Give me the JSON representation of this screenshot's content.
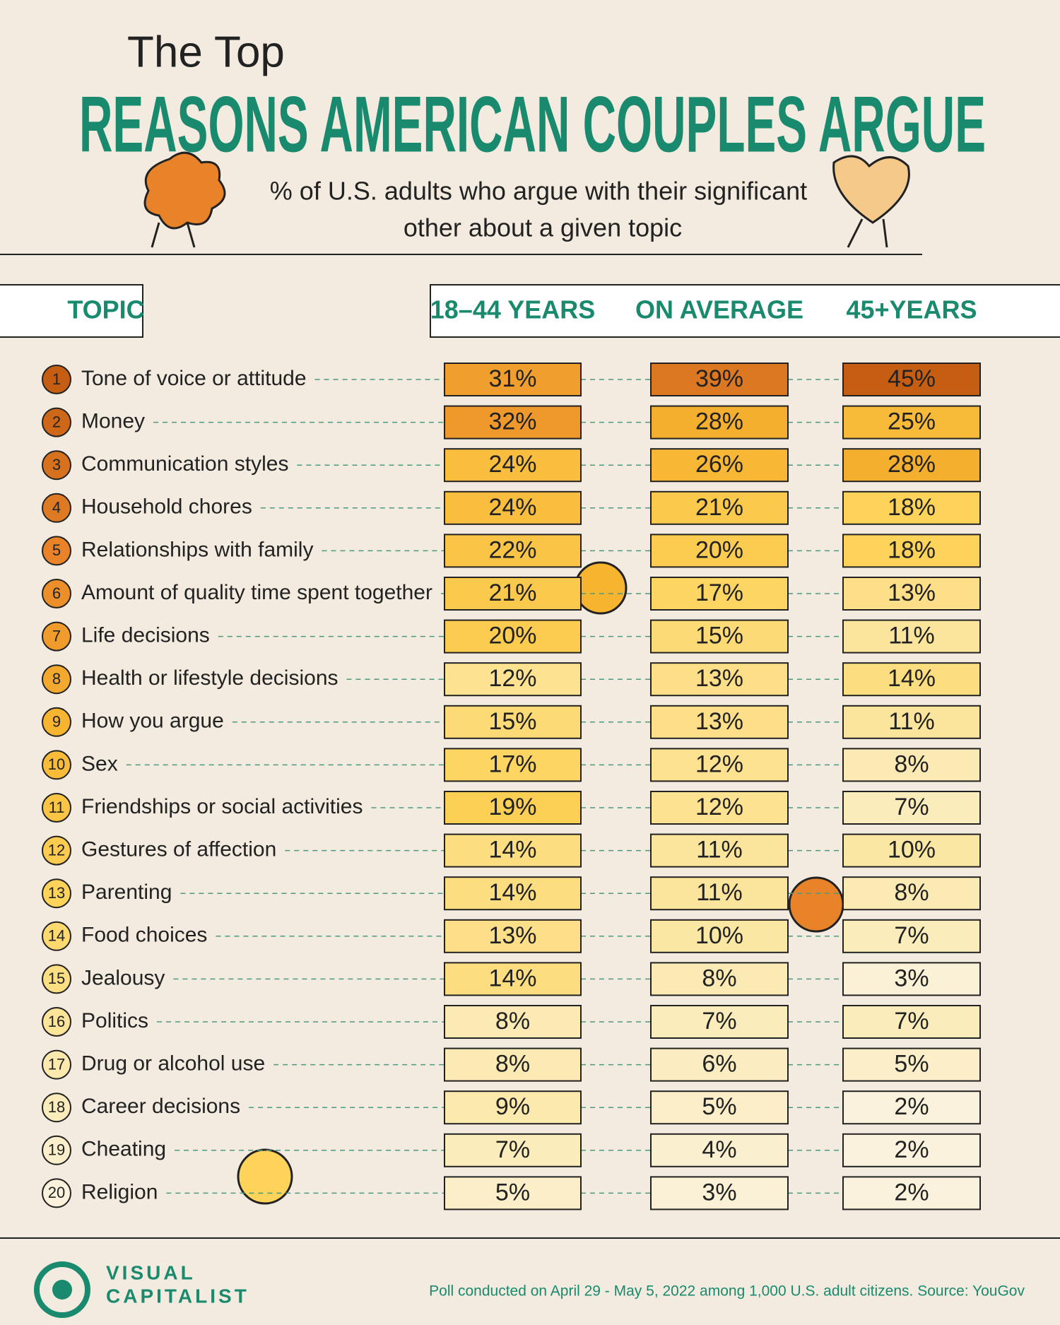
{
  "chart_data": {
    "type": "heatmap",
    "pretitle": "The Top",
    "title": "REASONS AMERICAN COUPLES ARGUE",
    "subtitle": [
      "% of U.S. adults who argue with their significant",
      "other about a given topic"
    ],
    "category_header": "TOPIC",
    "ranks": [
      1,
      2,
      3,
      4,
      5,
      6,
      7,
      8,
      9,
      10,
      11,
      12,
      13,
      14,
      15,
      16,
      17,
      18,
      19,
      20
    ],
    "categories": [
      "Tone of voice or attitude",
      "Money",
      "Communication styles",
      "Household chores",
      "Relationships with family",
      "Amount of quality time spent together",
      "Life decisions",
      "Health or lifestyle decisions",
      "How you argue",
      "Sex",
      "Friendships or social activities",
      "Gestures of affection",
      "Parenting",
      "Food choices",
      "Jealousy",
      "Politics",
      "Drug or alcohol use",
      "Career decisions",
      "Cheating",
      "Religion"
    ],
    "series": [
      {
        "name": "18–44 YEARS",
        "values": [
          31,
          32,
          24,
          24,
          22,
          21,
          20,
          12,
          15,
          17,
          19,
          14,
          14,
          13,
          14,
          8,
          8,
          9,
          7,
          5
        ],
        "value_labels": [
          "31%",
          "32%",
          "24%",
          "24%",
          "22%",
          "21%",
          "20%",
          "12%",
          "15%",
          "17%",
          "19%",
          "14%",
          "14%",
          "13%",
          "14%",
          "8%",
          "8%",
          "9%",
          "7%",
          "5%"
        ]
      },
      {
        "name": "ON AVERAGE",
        "values": [
          39,
          28,
          26,
          21,
          20,
          17,
          15,
          13,
          13,
          12,
          12,
          11,
          11,
          10,
          8,
          7,
          6,
          5,
          4,
          3
        ],
        "value_labels": [
          "39%",
          "28%",
          "26%",
          "21%",
          "20%",
          "17%",
          "15%",
          "13%",
          "13%",
          "12%",
          "12%",
          "11%",
          "11%",
          "10%",
          "8%",
          "7%",
          "6%",
          "5%",
          "4%",
          "3%"
        ]
      },
      {
        "name": "45+YEARS",
        "values": [
          45,
          25,
          28,
          18,
          18,
          13,
          11,
          14,
          11,
          8,
          7,
          10,
          8,
          7,
          3,
          7,
          5,
          2,
          2,
          2
        ],
        "value_labels": [
          "45%",
          "25%",
          "28%",
          "18%",
          "18%",
          "13%",
          "11%",
          "14%",
          "11%",
          "8%",
          "7%",
          "10%",
          "8%",
          "7%",
          "3%",
          "7%",
          "5%",
          "2%",
          "2%",
          "2%"
        ]
      }
    ],
    "colors": [
      "#faf5ea",
      "#fbe9ad",
      "#fdd35a",
      "#f7b42f",
      "#e8832a",
      "#c55e12"
    ],
    "brand": [
      "VISUAL",
      "CAPITALIST"
    ],
    "source": "Poll conducted on April 29 - May 5, 2022 among 1,000 U.S. adult citizens. Source: YouGov"
  }
}
